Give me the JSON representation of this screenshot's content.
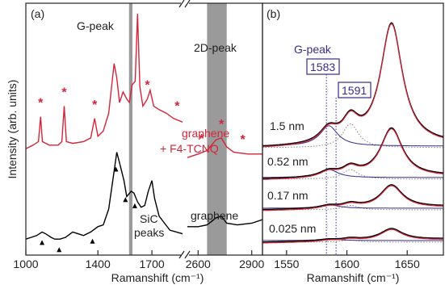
{
  "colors": {
    "graphene_f4tcnq": "#d4243a",
    "graphene": "#000000",
    "fit_component": "#3a2a8a",
    "fit_dotted": "#888888",
    "band": "#9a9a9a"
  },
  "chart_data": [
    {
      "type": "line",
      "panel": "(a)",
      "xlabel": "Ramanshift (cm⁻¹)",
      "ylabel": "Intensity (arb. units)",
      "xticks_left": [
        "1000",
        "1400",
        "1700"
      ],
      "xticks_left_values": [
        1000,
        1400,
        1700
      ],
      "xticks_right": [
        "2600",
        "2900"
      ],
      "xticks_right_values": [
        2600,
        2900
      ],
      "xlim_left": [
        1000,
        1870
      ],
      "xlim_right": [
        2540,
        2960
      ],
      "axis_break": true,
      "annotations": {
        "g_peak": "G-peak",
        "d2_peak": "2D-peak",
        "sic_line1": "SiC",
        "sic_line2": "peaks",
        "graphene_label": "graphene",
        "red_label_line1": "graphene",
        "red_label_line2": "+ F4-TCNQ"
      },
      "shaded_bands": [
        [
          1573,
          1592
        ],
        [
          2650,
          2760
        ]
      ],
      "series": [
        {
          "name": "graphene + F4-TCNQ",
          "points": [
            [
              1000,
              0.6
            ],
            [
              1040,
              0.62
            ],
            [
              1070,
              0.64
            ],
            [
              1082,
              0.78
            ],
            [
              1092,
              0.64
            ],
            [
              1130,
              0.62
            ],
            [
              1180,
              0.62
            ],
            [
              1200,
              0.64
            ],
            [
              1213,
              0.84
            ],
            [
              1225,
              0.64
            ],
            [
              1260,
              0.63
            ],
            [
              1320,
              0.64
            ],
            [
              1360,
              0.66
            ],
            [
              1382,
              0.77
            ],
            [
              1400,
              0.67
            ],
            [
              1430,
              0.7
            ],
            [
              1460,
              0.8
            ],
            [
              1490,
              1.08
            ],
            [
              1505,
              1.0
            ],
            [
              1520,
              0.86
            ],
            [
              1540,
              0.92
            ],
            [
              1560,
              0.88
            ],
            [
              1575,
              0.86
            ],
            [
              1590,
              0.96
            ],
            [
              1607,
              0.98
            ],
            [
              1620,
              1.36
            ],
            [
              1633,
              0.95
            ],
            [
              1650,
              0.84
            ],
            [
              1675,
              0.88
            ],
            [
              1690,
              0.93
            ],
            [
              1710,
              0.84
            ],
            [
              1740,
              0.82
            ],
            [
              1780,
              0.8
            ],
            [
              1820,
              0.77
            ],
            [
              1870,
              0.75
            ]
          ],
          "right_points": [
            [
              2540,
              0.55
            ],
            [
              2600,
              0.57
            ],
            [
              2650,
              0.59
            ],
            [
              2700,
              0.65
            ],
            [
              2730,
              0.66
            ],
            [
              2760,
              0.61
            ],
            [
              2800,
              0.58
            ],
            [
              2880,
              0.57
            ],
            [
              2960,
              0.57
            ]
          ]
        },
        {
          "name": "graphene",
          "points": [
            [
              1000,
              0.09
            ],
            [
              1030,
              0.1
            ],
            [
              1060,
              0.11
            ],
            [
              1090,
              0.13
            ],
            [
              1110,
              0.12
            ],
            [
              1140,
              0.1
            ],
            [
              1160,
              0.09
            ],
            [
              1190,
              0.09
            ],
            [
              1220,
              0.1
            ],
            [
              1260,
              0.13
            ],
            [
              1290,
              0.12
            ],
            [
              1320,
              0.11
            ],
            [
              1360,
              0.13
            ],
            [
              1400,
              0.16
            ],
            [
              1430,
              0.17
            ],
            [
              1460,
              0.26
            ],
            [
              1480,
              0.4
            ],
            [
              1505,
              0.58
            ],
            [
              1525,
              0.5
            ],
            [
              1545,
              0.42
            ],
            [
              1560,
              0.33
            ],
            [
              1585,
              0.36
            ],
            [
              1600,
              0.35
            ],
            [
              1620,
              0.3
            ],
            [
              1640,
              0.27
            ],
            [
              1660,
              0.28
            ],
            [
              1680,
              0.36
            ],
            [
              1700,
              0.42
            ],
            [
              1715,
              0.32
            ],
            [
              1740,
              0.22
            ],
            [
              1770,
              0.18
            ],
            [
              1800,
              0.14
            ],
            [
              1870,
              0.12
            ]
          ],
          "right_points": [
            [
              2540,
              0.16
            ],
            [
              2600,
              0.16
            ],
            [
              2650,
              0.17
            ],
            [
              2700,
              0.21
            ],
            [
              2730,
              0.22
            ],
            [
              2760,
              0.18
            ],
            [
              2820,
              0.17
            ],
            [
              2900,
              0.18
            ],
            [
              2960,
              0.2
            ]
          ]
        }
      ],
      "star_markers_x": [
        1082,
        1213,
        1382,
        1620,
        1675,
        1840,
        2620,
        2730,
        2850
      ],
      "triangle_markers_x": [
        1090,
        1185,
        1370,
        1500,
        1553,
        1605
      ]
    },
    {
      "type": "line",
      "panel": "(b)",
      "xlabel": "Ramanshift (cm⁻¹)",
      "xticks": [
        "1550",
        "1600",
        "1650"
      ],
      "xtick_values": [
        1550,
        1600,
        1650
      ],
      "xlim": [
        1530,
        1680
      ],
      "annotations": {
        "g_peak": "G-peak",
        "pos1": "1583",
        "pos2": "1591"
      },
      "reference_lines_x": [
        1583,
        1591
      ],
      "thickness_labels": [
        "1.5 nm",
        "0.52 nm",
        "0.17 nm",
        "0.025 nm"
      ]
    }
  ]
}
